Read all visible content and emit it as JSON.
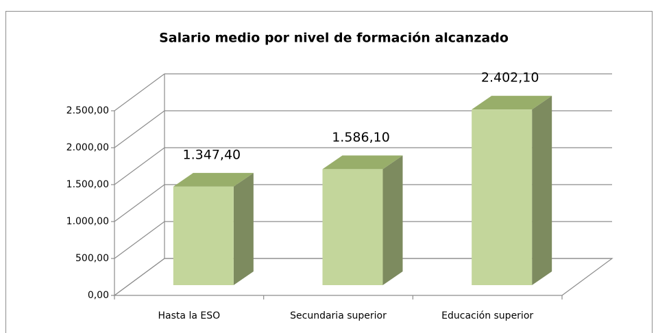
{
  "chart_data": {
    "type": "bar3d",
    "title": "Salario medio por nivel de formación alcanzado",
    "categories": [
      "Hasta la ESO",
      "Secundaria superior",
      "Educación superior"
    ],
    "values": [
      1347.4,
      1586.1,
      2402.1
    ],
    "value_labels": [
      "1.347,40",
      "1.586,10",
      "2.402,10"
    ],
    "color": "#c3d69b",
    "ylim": [
      0,
      2500
    ],
    "yticks": [
      {
        "value": 0,
        "label": "0,00"
      },
      {
        "value": 500,
        "label": "500,00"
      },
      {
        "value": 1000,
        "label": "1.000,00"
      },
      {
        "value": 1500,
        "label": "1.500,00"
      },
      {
        "value": 2000,
        "label": "2.000,00"
      },
      {
        "value": 2500,
        "label": "2.500,00"
      }
    ],
    "grid": true
  }
}
